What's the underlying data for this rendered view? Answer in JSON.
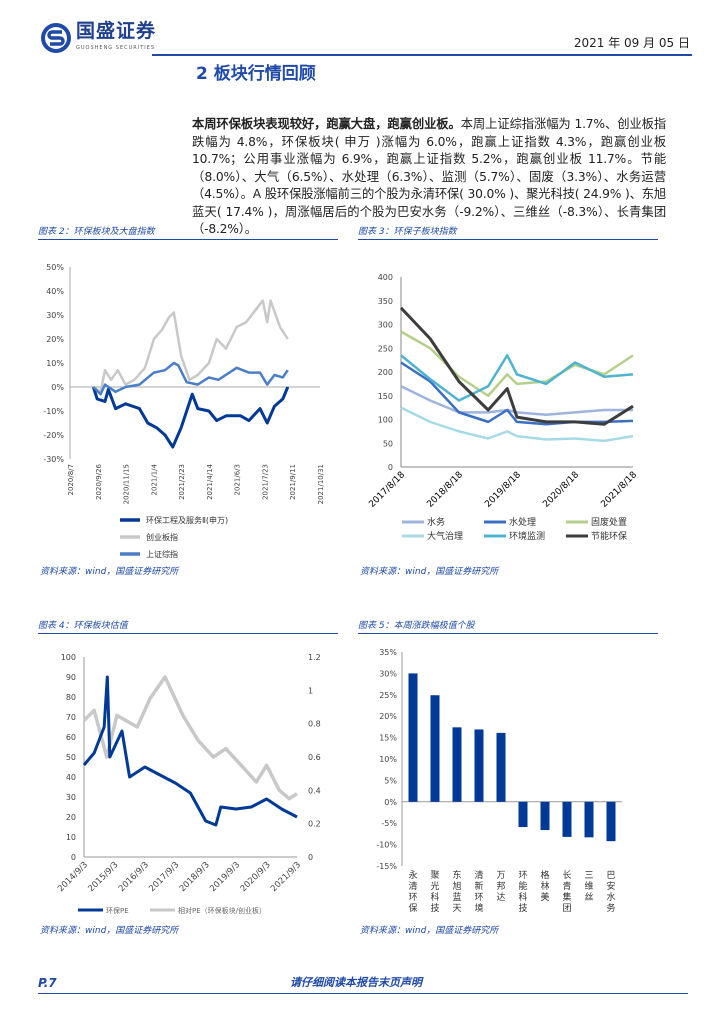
{
  "header": {
    "brand": "国盛证券",
    "brand_en": "GUOSHENG SECURITIES",
    "date": "2021 年 09 月 05 日"
  },
  "section": {
    "title": "2 板块行情回顾"
  },
  "body": {
    "lead": "本周环保板块表现较好，跑赢大盘，跑赢创业板。",
    "text": "本周上证综指涨幅为 1.7%、创业板指跌幅为 4.8%，环保板块( 申万 )涨幅为 6.0%，跑赢上证指数 4.3%，跑赢创业板 10.7%；公用事业涨幅为 6.9%，跑赢上证指数 5.2%，跑赢创业板 11.7%。节能（8.0%）、大气（6.5%）、水处理（6.3%）、监测（5.7%）、固废（3.3%）、水务运营（4.5%）。A 股环保股涨幅前三的个股为永清环保( 30.0% )、聚光科技( 24.9% )、东旭蓝天( 17.4% )，周涨幅居后的个股为巴安水务（-9.2%）、三维丝（-8.3%）、长青集团（-8.2%）。"
  },
  "figures": {
    "fig2_caption": "图表 2：环保板块及大盘指数",
    "fig3_caption": "图表 3：环保子板块指数",
    "fig4_caption": "图表 4：环保板块估值",
    "fig5_caption": "图表 5：本周涨跌幅极值个股",
    "source": "资料来源：wind，国盛证券研究所"
  },
  "colors": {
    "accent": "#1f4aa8",
    "dark_blue": "#003a96",
    "gray": "#c8c8c8",
    "mid_blue": "#4a7ec8"
  },
  "chart_data": [
    {
      "type": "line",
      "yticks": [
        "50%",
        "40%",
        "30%",
        "20%",
        "10%",
        "0%",
        "-10%",
        "-20%",
        "-30%"
      ],
      "ylim": [
        -30,
        50
      ],
      "xticks": [
        "2020/8/7",
        "2020/9/26",
        "2020/11/15",
        "2021/1/4",
        "2021/2/23",
        "2021/4/14",
        "2021/6/3",
        "2021/7/23",
        "2021/9/11",
        "2021/10/31"
      ],
      "series": [
        {
          "name": "环保工程及服务Ⅱ(申万)",
          "color": "#003a96",
          "x": [
            "2020/9/18",
            "2020/9/25",
            "2020/10/9",
            "2020/10/15",
            "2020/10/28",
            "2020/11/15",
            "2020/12/10",
            "2020/12/25",
            "2021/1/10",
            "2021/1/25",
            "2021/2/8",
            "2021/2/23",
            "2021/3/5",
            "2021/3/15",
            "2021/3/25",
            "2021/4/14",
            "2021/4/28",
            "2021/5/15",
            "2021/6/10",
            "2021/6/25",
            "2021/7/15",
            "2021/7/28",
            "2021/8/10",
            "2021/8/25",
            "2021/9/3"
          ],
          "y": [
            0,
            -5,
            -6,
            -1,
            -9,
            -7,
            -9,
            -15,
            -17,
            -20,
            -25,
            -17,
            -10,
            -3,
            -9,
            -10,
            -14,
            -12,
            -12,
            -14,
            -9,
            -15,
            -8,
            -5,
            0
          ]
        },
        {
          "name": "创业板指",
          "color": "#c8c8c8",
          "x": [
            "2020/9/18",
            "2020/10/1",
            "2020/10/9",
            "2020/10/20",
            "2020/11/1",
            "2020/11/15",
            "2020/12/1",
            "2020/12/20",
            "2021/1/5",
            "2021/1/20",
            "2021/2/1",
            "2021/2/10",
            "2021/2/23",
            "2021/3/10",
            "2021/3/25",
            "2021/4/14",
            "2021/4/28",
            "2021/5/15",
            "2021/6/3",
            "2021/6/20",
            "2021/7/10",
            "2021/7/20",
            "2021/7/28",
            "2021/8/3",
            "2021/8/20",
            "2021/9/3"
          ],
          "y": [
            0,
            -2,
            7,
            3,
            7,
            1,
            3,
            8,
            20,
            24,
            29,
            31,
            13,
            3,
            5,
            10,
            20,
            16,
            25,
            27,
            33,
            36,
            27,
            36,
            25,
            20
          ]
        },
        {
          "name": "上证综指",
          "color": "#4a7ec8",
          "x": [
            "2020/9/18",
            "2020/10/1",
            "2020/10/9",
            "2020/10/28",
            "2020/11/15",
            "2020/12/10",
            "2021/1/5",
            "2021/1/25",
            "2021/2/10",
            "2021/2/18",
            "2021/3/5",
            "2021/3/25",
            "2021/4/14",
            "2021/5/1",
            "2021/6/3",
            "2021/6/25",
            "2021/7/15",
            "2021/7/28",
            "2021/8/10",
            "2021/8/25",
            "2021/9/3"
          ],
          "y": [
            0,
            -3,
            1,
            -2,
            0,
            1,
            6,
            7,
            10,
            9,
            2,
            1,
            4,
            3,
            8,
            6,
            6,
            1,
            5,
            4,
            7
          ]
        }
      ]
    },
    {
      "type": "line",
      "yticks": [
        "400",
        "350",
        "300",
        "250",
        "200",
        "150",
        "100",
        "50",
        "0"
      ],
      "ylim": [
        0,
        400
      ],
      "xticks": [
        "2017/8/18",
        "2018/8/18",
        "2019/8/18",
        "2020/8/18",
        "2021/8/18"
      ],
      "x": [
        "2017/8/18",
        "2018/2/18",
        "2018/8/18",
        "2019/2/18",
        "2019/6/18",
        "2019/8/18",
        "2020/2/18",
        "2020/8/18",
        "2021/2/18",
        "2021/8/18"
      ],
      "series": [
        {
          "name": "水务",
          "color": "#9db4dd",
          "y": [
            170,
            140,
            115,
            115,
            120,
            115,
            110,
            115,
            120,
            120
          ]
        },
        {
          "name": "水处理",
          "color": "#3a6fc4",
          "y": [
            220,
            180,
            115,
            95,
            120,
            95,
            90,
            95,
            95,
            97
          ]
        },
        {
          "name": "固废处置",
          "color": "#b5cf8a",
          "y": [
            285,
            250,
            190,
            150,
            195,
            175,
            180,
            215,
            195,
            235
          ]
        },
        {
          "name": "大气治理",
          "color": "#a6dbe6",
          "y": [
            125,
            95,
            75,
            60,
            75,
            65,
            58,
            60,
            55,
            65
          ]
        },
        {
          "name": "环境监测",
          "color": "#4fb3cf",
          "y": [
            235,
            185,
            140,
            170,
            235,
            195,
            175,
            220,
            190,
            195
          ]
        },
        {
          "name": "节能环保",
          "color": "#3d3d3d",
          "y": [
            335,
            270,
            180,
            120,
            165,
            105,
            95,
            95,
            90,
            128
          ]
        }
      ]
    },
    {
      "type": "line",
      "yticks": [
        "100",
        "90",
        "80",
        "70",
        "60",
        "50",
        "40",
        "30",
        "20",
        "10",
        "0"
      ],
      "ylim": [
        0,
        100
      ],
      "y2ticks": [
        "1.2",
        "1",
        "0.8",
        "0.6",
        "0.4",
        "0.2",
        "0"
      ],
      "y2lim": [
        0,
        1.2
      ],
      "xticks": [
        "2014/9/3",
        "2015/9/3",
        "2016/9/3",
        "2017/9/3",
        "2018/9/3",
        "2019/9/3",
        "2020/9/3",
        "2021/9/3"
      ],
      "series": [
        {
          "name": "相对PE（环保板块/创业板）",
          "axis": "right",
          "color": "#c8c8c8",
          "x": [
            "2014/9/3",
            "2015/1/3",
            "2015/6/3",
            "2015/10/3",
            "2016/6/3",
            "2016/11/3",
            "2017/5/3",
            "2017/12/3",
            "2018/6/3",
            "2018/12/3",
            "2019/5/3",
            "2019/11/3",
            "2020/5/3",
            "2020/9/3",
            "2021/2/3",
            "2021/6/3",
            "2021/9/3"
          ],
          "y": [
            0.82,
            0.88,
            0.6,
            0.85,
            0.78,
            0.95,
            1.08,
            0.85,
            0.7,
            0.6,
            0.65,
            0.55,
            0.45,
            0.55,
            0.4,
            0.35,
            0.38
          ]
        },
        {
          "name": "环保PE",
          "axis": "left",
          "color": "#003a96",
          "x": [
            "2014/9/3",
            "2015/1/3",
            "2015/5/3",
            "2015/6/10",
            "2015/7/10",
            "2015/12/3",
            "2016/3/3",
            "2016/9/3",
            "2017/3/3",
            "2017/9/3",
            "2018/3/3",
            "2018/9/3",
            "2019/1/3",
            "2019/3/3",
            "2019/9/3",
            "2020/3/3",
            "2020/9/3",
            "2021/3/3",
            "2021/9/3"
          ],
          "y": [
            46,
            52,
            65,
            90,
            50,
            63,
            40,
            45,
            41,
            37,
            32,
            18,
            16,
            25,
            24,
            25,
            29,
            24,
            20
          ]
        }
      ]
    },
    {
      "type": "bar",
      "yticks": [
        "35%",
        "30%",
        "25%",
        "20%",
        "15%",
        "10%",
        "5%",
        "0%",
        "-5%",
        "-10%",
        "-15%"
      ],
      "ylim": [
        -15,
        35
      ],
      "categories": [
        "永清环保",
        "聚光科技",
        "东旭蓝天",
        "清新环境",
        "万邦达",
        "环能科技",
        "格林美",
        "长青集团",
        "三维丝",
        "巴安水务"
      ],
      "values": [
        30.0,
        24.9,
        17.4,
        16.9,
        16.1,
        -5.9,
        -6.6,
        -8.2,
        -8.3,
        -9.2
      ],
      "color": "#003a96"
    }
  ],
  "footer": {
    "page": "P.7",
    "disclaimer": "请仔细阅读本报告末页声明"
  }
}
